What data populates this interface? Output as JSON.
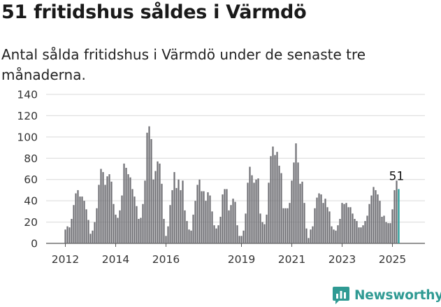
{
  "title": "51 fritidshus såldes i Värmdö",
  "subtitle": "Antal sålda fritidshus i Värmdö under de senaste tre månaderna.",
  "brand": {
    "name": "Newsworthy",
    "logo_icon": "bar-chart-logo-icon",
    "color": "#2f9a93"
  },
  "chart_data": {
    "type": "bar",
    "ylim": [
      0,
      140
    ],
    "yticks": [
      0,
      20,
      40,
      60,
      80,
      100,
      120,
      140
    ],
    "xticks": [
      {
        "label": "2012",
        "index": 0
      },
      {
        "label": "2014",
        "index": 24
      },
      {
        "label": "2016",
        "index": 48
      },
      {
        "label": "2019",
        "index": 84
      },
      {
        "label": "2021",
        "index": 108
      },
      {
        "label": "2023",
        "index": 132
      },
      {
        "label": "2025",
        "index": 156
      }
    ],
    "grid": true,
    "bar_color": "#6e6e73",
    "highlight_color": "#1f9a96",
    "highlight_label": "51",
    "values": [
      13,
      16,
      15,
      23,
      36,
      47,
      50,
      44,
      44,
      40,
      32,
      22,
      9,
      12,
      20,
      33,
      55,
      70,
      67,
      55,
      63,
      65,
      58,
      37,
      27,
      24,
      31,
      45,
      75,
      71,
      65,
      62,
      51,
      44,
      35,
      23,
      24,
      37,
      59,
      104,
      110,
      98,
      60,
      68,
      77,
      75,
      56,
      23,
      7,
      16,
      36,
      50,
      67,
      52,
      60,
      50,
      59,
      31,
      21,
      13,
      12,
      27,
      40,
      55,
      60,
      49,
      49,
      40,
      48,
      45,
      30,
      17,
      14,
      17,
      25,
      46,
      51,
      51,
      31,
      36,
      42,
      39,
      17,
      7,
      7,
      12,
      28,
      57,
      72,
      64,
      57,
      60,
      61,
      28,
      20,
      18,
      27,
      57,
      82,
      91,
      83,
      86,
      73,
      66,
      33,
      33,
      33,
      38,
      59,
      76,
      94,
      76,
      56,
      58,
      38,
      14,
      5,
      13,
      16,
      33,
      43,
      47,
      46,
      38,
      42,
      34,
      30,
      16,
      13,
      12,
      17,
      23,
      38,
      37,
      38,
      34,
      34,
      28,
      23,
      21,
      15,
      15,
      17,
      21,
      26,
      37,
      45,
      53,
      50,
      46,
      40,
      25,
      26,
      20,
      19,
      19,
      32,
      50,
      59,
      51
    ]
  }
}
